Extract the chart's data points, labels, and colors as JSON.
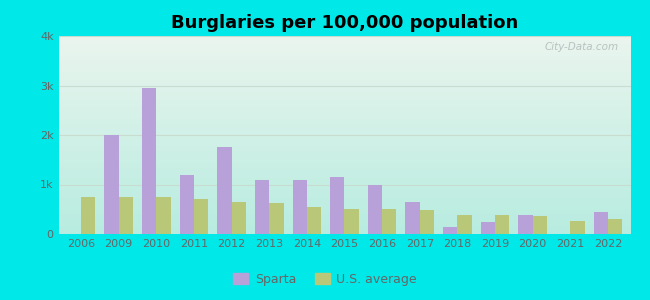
{
  "title": "Burglaries per 100,000 population",
  "years": [
    2006,
    2009,
    2010,
    2011,
    2012,
    2013,
    2014,
    2015,
    2016,
    2017,
    2018,
    2019,
    2020,
    2021,
    2022
  ],
  "sparta": [
    0,
    2000,
    2950,
    1200,
    1750,
    1100,
    1100,
    1150,
    1000,
    650,
    150,
    250,
    380,
    0,
    450
  ],
  "us_avg": [
    750,
    750,
    750,
    700,
    650,
    625,
    550,
    500,
    500,
    480,
    380,
    380,
    370,
    270,
    300
  ],
  "sparta_color": "#b8a0d8",
  "us_avg_color": "#b8c878",
  "bg_outer": "#00e8e8",
  "bg_chart_top": "#eaf5ee",
  "bg_chart_bottom": "#b8ece0",
  "grid_color": "#c8ddd0",
  "ylim": [
    0,
    4000
  ],
  "yticks": [
    0,
    1000,
    2000,
    3000,
    4000
  ],
  "ytick_labels": [
    "0",
    "1k",
    "2k",
    "3k",
    "4k"
  ],
  "bar_width": 0.38,
  "legend_sparta": "Sparta",
  "legend_us": "U.S. average",
  "watermark": "City-Data.com",
  "tick_color": "#666666",
  "title_fontsize": 13,
  "tick_fontsize": 8,
  "legend_fontsize": 9,
  "figsize": [
    6.5,
    3.0
  ],
  "dpi": 100
}
